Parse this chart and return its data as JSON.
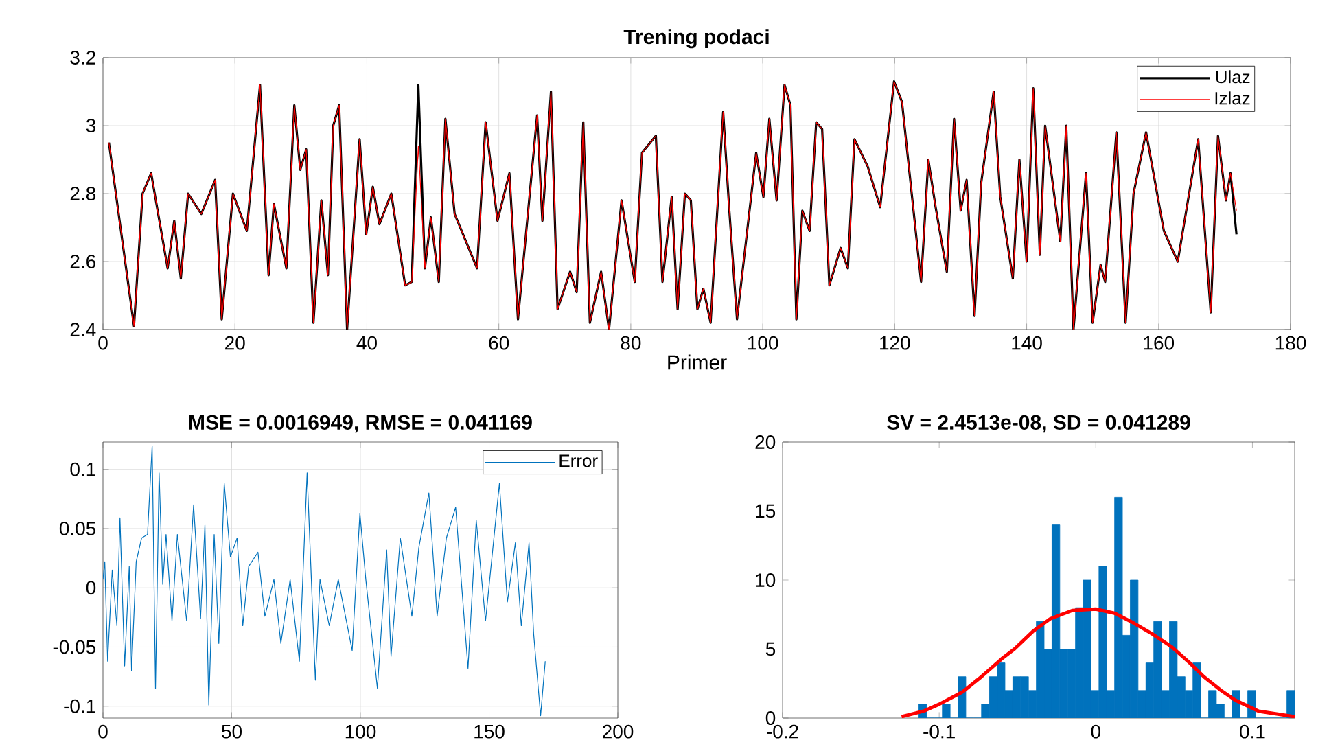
{
  "chart_data": [
    {
      "type": "line",
      "title": "Trening podaci",
      "xlabel": "Primer",
      "xlim": [
        0,
        180
      ],
      "xticks": [
        0,
        20,
        40,
        60,
        80,
        100,
        120,
        140,
        160,
        180
      ],
      "ylim": [
        2.4,
        3.2
      ],
      "yticks": [
        2.4,
        2.6,
        2.8,
        3,
        3.2
      ],
      "grid": true,
      "legend": "top right",
      "x": [
        0.9,
        4.7,
        6,
        7.3,
        9.8,
        10.8,
        11.8,
        12.9,
        14.9,
        17,
        18,
        19.7,
        21.8,
        23.8,
        25.1,
        25.9,
        27.8,
        29,
        29.9,
        30.8,
        31.9,
        33.1,
        34.1,
        34.9,
        35.8,
        37,
        38.9,
        39.9,
        40.9,
        41.9,
        43.7,
        45.8,
        46.8,
        47.8,
        48.8,
        49.7,
        50.9,
        51.9,
        53.3,
        56.7,
        58,
        59.8,
        61.6,
        62.9,
        65.8,
        66.6,
        67.9,
        68.9,
        70.8,
        71.8,
        72.8,
        73.8,
        75.5,
        76.7,
        78.6,
        80.6,
        81.7,
        83.8,
        84.8,
        86.2,
        87.1,
        88.2,
        89.1,
        90.1,
        91,
        92.1,
        94,
        94.9,
        96.1,
        99,
        100.1,
        101,
        102.1,
        103.3,
        104.2,
        105.1,
        106,
        107.1,
        108.1,
        109,
        110.1,
        111.8,
        112.9,
        113.9,
        115.9,
        117.8,
        119.9,
        121.1,
        124,
        125.1,
        126.2,
        127.9,
        129,
        130,
        130.9,
        132.1,
        133.1,
        135,
        136,
        137.9,
        138.9,
        140,
        141,
        142,
        142.8,
        145.1,
        146,
        147.1,
        149,
        150,
        151.2,
        151.9,
        153.6,
        155,
        156.2,
        158.1,
        160.8,
        162.9,
        166,
        167.9,
        169,
        170.2,
        170.9,
        171.8
      ],
      "series": [
        {
          "name": "Ulaz",
          "color": "#000000",
          "values": [
            2.95,
            2.41,
            2.8,
            2.86,
            2.58,
            2.72,
            2.55,
            2.8,
            2.74,
            2.84,
            2.43,
            2.8,
            2.69,
            3.12,
            2.56,
            2.77,
            2.58,
            3.06,
            2.87,
            2.93,
            2.42,
            2.78,
            2.56,
            3,
            3.06,
            2.4,
            2.96,
            2.68,
            2.82,
            2.71,
            2.8,
            2.53,
            2.54,
            3.12,
            2.58,
            2.73,
            2.54,
            3.02,
            2.74,
            2.58,
            3.01,
            2.72,
            2.86,
            2.43,
            3.03,
            2.72,
            3.1,
            2.46,
            2.57,
            2.51,
            3.01,
            2.42,
            2.57,
            2.4,
            2.78,
            2.54,
            2.92,
            2.97,
            2.54,
            2.79,
            2.46,
            2.8,
            2.78,
            2.46,
            2.52,
            2.42,
            3.04,
            2.76,
            2.43,
            2.92,
            2.79,
            3.02,
            2.78,
            3.12,
            3.06,
            2.43,
            2.75,
            2.69,
            3.01,
            2.99,
            2.53,
            2.64,
            2.58,
            2.96,
            2.88,
            2.76,
            3.13,
            3.07,
            2.54,
            2.9,
            2.76,
            2.57,
            3.02,
            2.75,
            2.84,
            2.44,
            2.83,
            3.1,
            2.79,
            2.55,
            2.9,
            2.6,
            3.11,
            2.62,
            3,
            2.66,
            3,
            2.4,
            2.86,
            2.42,
            2.59,
            2.54,
            2.98,
            2.42,
            2.8,
            2.98,
            2.69,
            2.6,
            2.96,
            2.45,
            2.97,
            2.78,
            2.86,
            2.68
          ]
        },
        {
          "name": "Izlaz",
          "color": "#ff0000",
          "values": [
            2.95,
            2.41,
            2.8,
            2.86,
            2.58,
            2.72,
            2.55,
            2.8,
            2.74,
            2.84,
            2.43,
            2.8,
            2.69,
            3.12,
            2.56,
            2.77,
            2.58,
            3.06,
            2.87,
            2.93,
            2.42,
            2.78,
            2.56,
            3,
            3.06,
            2.4,
            2.96,
            2.68,
            2.82,
            2.71,
            2.8,
            2.53,
            2.54,
            2.94,
            2.58,
            2.73,
            2.54,
            3.02,
            2.74,
            2.58,
            3.01,
            2.72,
            2.86,
            2.43,
            3.03,
            2.72,
            3.1,
            2.46,
            2.57,
            2.51,
            3.01,
            2.42,
            2.57,
            2.4,
            2.78,
            2.54,
            2.92,
            2.97,
            2.54,
            2.79,
            2.46,
            2.8,
            2.78,
            2.46,
            2.52,
            2.42,
            3.04,
            2.76,
            2.43,
            2.92,
            2.79,
            3.02,
            2.78,
            3.12,
            3.06,
            2.43,
            2.75,
            2.69,
            3.01,
            2.99,
            2.53,
            2.64,
            2.58,
            2.96,
            2.88,
            2.76,
            3.13,
            3.07,
            2.54,
            2.9,
            2.76,
            2.57,
            3.02,
            2.75,
            2.84,
            2.44,
            2.83,
            3.1,
            2.79,
            2.55,
            2.9,
            2.6,
            3.11,
            2.62,
            3,
            2.66,
            3,
            2.4,
            2.86,
            2.42,
            2.59,
            2.54,
            2.98,
            2.42,
            2.8,
            2.98,
            2.69,
            2.6,
            2.96,
            2.45,
            2.97,
            2.78,
            2.86,
            2.75
          ]
        }
      ]
    },
    {
      "type": "line",
      "title": "MSE = 0.0016949, RMSE = 0.041169",
      "xlim": [
        0,
        200
      ],
      "xticks": [
        0,
        50,
        100,
        150,
        200
      ],
      "ylim": [
        -0.11,
        0.123
      ],
      "yticks": [
        -0.1,
        -0.05,
        0,
        0.05,
        0.1
      ],
      "grid": true,
      "legend": "top right",
      "x": [
        0,
        0.7,
        1.8,
        3.6,
        5.4,
        6.6,
        8.4,
        10.2,
        11.1,
        12.9,
        15,
        17.3,
        19.1,
        20.4,
        21.8,
        23.2,
        24.5,
        26.8,
        28.9,
        32.5,
        35.2,
        37.9,
        39.6,
        41.1,
        43.2,
        45,
        47.1,
        49.5,
        52.1,
        54.3,
        56.6,
        60.2,
        62.9,
        66.4,
        69.1,
        72.7,
        76.3,
        79.3,
        82.5,
        84.3,
        87.9,
        91.4,
        96.8,
        99.8,
        102.1,
        106.6,
        110.2,
        111.9,
        115.5,
        120,
        122.7,
        126.6,
        129.8,
        133.4,
        137,
        141.8,
        145,
        148.6,
        154,
        157.1,
        160.2,
        162.5,
        165.5,
        167.3,
        170,
        171.8
      ],
      "series": [
        {
          "name": "Error",
          "color": "#0072bd",
          "values": [
            0.007,
            0.022,
            -0.062,
            0.015,
            -0.032,
            0.059,
            -0.066,
            0.018,
            -0.07,
            0.022,
            0.042,
            0.045,
            0.12,
            -0.085,
            0.097,
            0.003,
            0.045,
            -0.028,
            0.045,
            -0.028,
            0.07,
            -0.026,
            0.053,
            -0.099,
            0.045,
            -0.047,
            0.088,
            0.026,
            0.042,
            -0.032,
            0.018,
            0.03,
            -0.024,
            0.007,
            -0.047,
            0.007,
            -0.062,
            0.097,
            -0.078,
            0.007,
            -0.032,
            0.007,
            -0.053,
            0.063,
            0.007,
            -0.085,
            0.032,
            -0.058,
            0.042,
            -0.024,
            0.034,
            0.08,
            -0.024,
            0.042,
            0.068,
            -0.068,
            0.057,
            -0.028,
            0.088,
            -0.012,
            0.038,
            -0.032,
            0.038,
            -0.039,
            -0.108,
            -0.062
          ]
        }
      ]
    },
    {
      "type": "histogram",
      "title": "SV = 2.4513e-08, SD = 0.041289",
      "xlim": [
        -0.2,
        0.127
      ],
      "xticks": [
        -0.2,
        -0.1,
        0,
        0.1
      ],
      "ylim": [
        0,
        20
      ],
      "yticks": [
        0,
        5,
        10,
        15,
        20
      ],
      "series": [
        {
          "type": "histogram",
          "color": "#0072bd",
          "bins": [
            -0.113,
            -0.108,
            -0.103,
            -0.098,
            -0.093,
            -0.088,
            -0.083,
            -0.078,
            -0.073,
            -0.068,
            -0.063,
            -0.058,
            -0.053,
            -0.048,
            -0.043,
            -0.038,
            -0.033,
            -0.028,
            -0.023,
            -0.018,
            -0.013,
            -0.008,
            -0.003,
            0.002,
            0.007,
            0.012,
            0.017,
            0.022,
            0.027,
            0.032,
            0.037,
            0.042,
            0.047,
            0.052,
            0.057,
            0.062,
            0.067,
            0.072,
            0.077,
            0.082,
            0.087,
            0.092,
            0.097,
            0.102,
            0.107,
            0.112,
            0.117,
            0.122,
            0.127
          ],
          "values": [
            1,
            0,
            0,
            1,
            0,
            3,
            0,
            0,
            1,
            3,
            4,
            2,
            3,
            3,
            2,
            7,
            5,
            14,
            5,
            5,
            8,
            10,
            2,
            11,
            2,
            16,
            6,
            10,
            2,
            4,
            7,
            2,
            7,
            3,
            2,
            4,
            0,
            2,
            1,
            0,
            2,
            0,
            2,
            0,
            0,
            0,
            0,
            2
          ]
        },
        {
          "type": "line",
          "color": "#ff0000",
          "x": [
            -0.124,
            -0.11,
            -0.1,
            -0.085,
            -0.073,
            -0.06,
            -0.052,
            -0.04,
            -0.029,
            -0.015,
            0,
            0.012,
            0.024,
            0.036,
            0.048,
            0.06,
            0.069,
            0.08,
            0.089,
            0.104,
            0.127
          ],
          "values": [
            0.1,
            0.5,
            1,
            1.9,
            3,
            4.3,
            5,
            6.3,
            7.2,
            7.8,
            7.9,
            7.6,
            6.9,
            6.1,
            5.2,
            4,
            3,
            2,
            1.3,
            0.5,
            0.1
          ]
        }
      ]
    }
  ]
}
